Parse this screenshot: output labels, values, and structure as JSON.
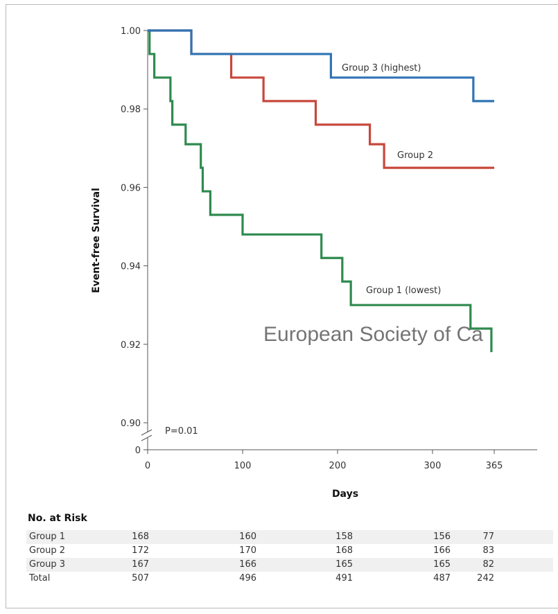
{
  "chart_data": {
    "type": "line",
    "step": true,
    "xlabel": "Days",
    "ylabel": "Event-free Survival",
    "xticks": [
      0,
      100,
      200,
      300,
      365
    ],
    "yticks": [
      1.0,
      0.98,
      0.96,
      0.94,
      0.92,
      0.9
    ],
    "ytick_labels": [
      "1.00",
      "0.98",
      "0.96",
      "0.94",
      "0.92",
      "0.90"
    ],
    "y_zero_label": "0",
    "xlim": [
      0,
      365
    ],
    "ylim": [
      0.9,
      1.0
    ],
    "broken_axis": true,
    "annotation": "P=0.01",
    "series": [
      {
        "name": "Group 1 (lowest)",
        "color": "#2f8a4f",
        "points": [
          [
            0,
            1.0
          ],
          [
            2,
            0.994
          ],
          [
            7,
            0.988
          ],
          [
            24,
            0.982
          ],
          [
            26,
            0.976
          ],
          [
            40,
            0.971
          ],
          [
            56,
            0.965
          ],
          [
            58,
            0.959
          ],
          [
            66,
            0.953
          ],
          [
            100,
            0.948
          ],
          [
            183,
            0.942
          ],
          [
            205,
            0.936
          ],
          [
            214,
            0.93
          ],
          [
            340,
            0.924
          ],
          [
            362,
            0.918
          ]
        ]
      },
      {
        "name": "Group 2",
        "color": "#c8473c",
        "points": [
          [
            0,
            1.0
          ],
          [
            46,
            0.994
          ],
          [
            88,
            0.988
          ],
          [
            122,
            0.982
          ],
          [
            177,
            0.976
          ],
          [
            234,
            0.971
          ],
          [
            249,
            0.965
          ],
          [
            365,
            0.965
          ]
        ]
      },
      {
        "name": "Group 3 (highest)",
        "color": "#2f74b4",
        "points": [
          [
            0,
            1.0
          ],
          [
            46,
            0.994
          ],
          [
            193,
            0.988
          ],
          [
            343,
            0.982
          ],
          [
            365,
            0.982
          ]
        ]
      }
    ]
  },
  "risk_table": {
    "title": "No. at Risk",
    "columns_x": [
      0,
      100,
      200,
      300,
      365
    ],
    "rows": [
      {
        "name": "Group 1",
        "values": [
          "168",
          "160",
          "158",
          "156",
          "77"
        ]
      },
      {
        "name": "Group 2",
        "values": [
          "172",
          "170",
          "168",
          "166",
          "83"
        ]
      },
      {
        "name": "Group 3",
        "values": [
          "167",
          "166",
          "165",
          "165",
          "82"
        ]
      },
      {
        "name": "Total",
        "values": [
          "507",
          "496",
          "491",
          "487",
          "242"
        ]
      }
    ]
  },
  "watermark": "European Society of Ca"
}
